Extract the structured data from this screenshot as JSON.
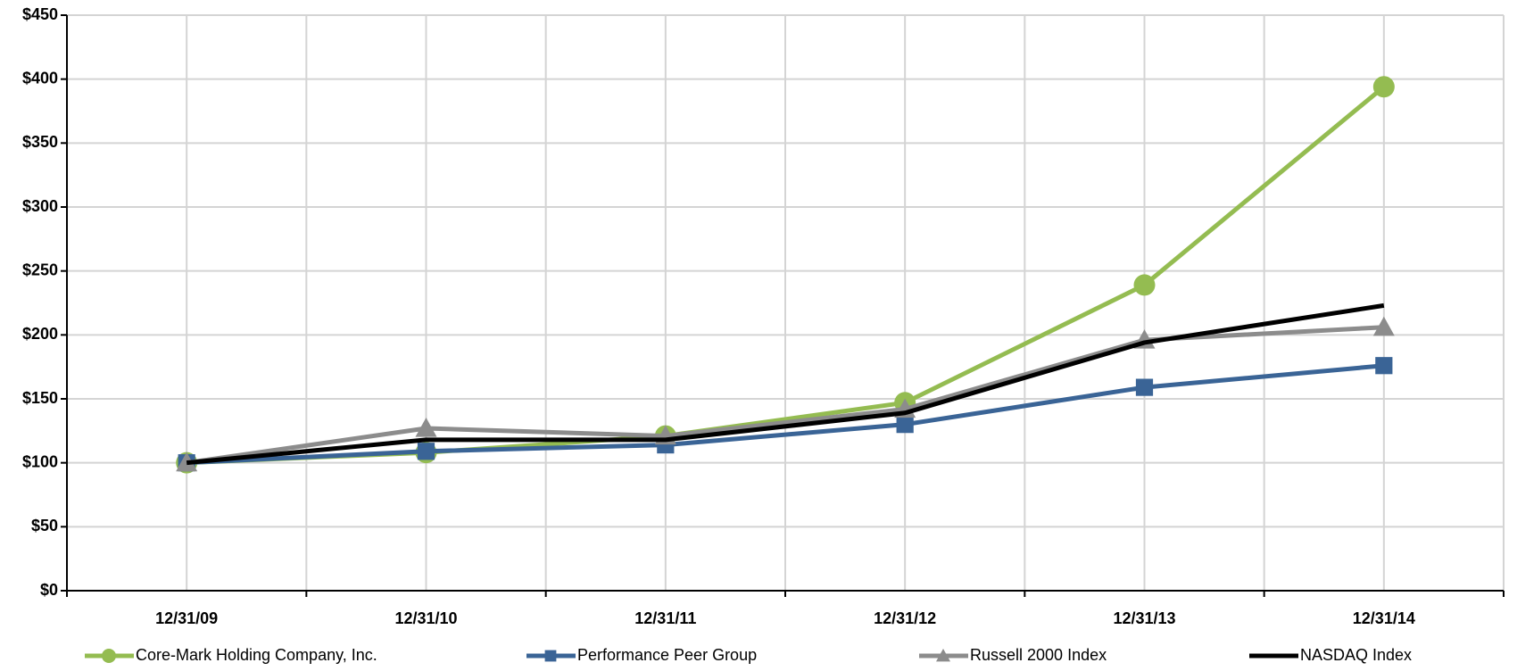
{
  "chart_data": {
    "type": "line",
    "categories": [
      "12/31/09",
      "12/31/10",
      "12/31/11",
      "12/31/12",
      "12/31/13",
      "12/31/14"
    ],
    "series": [
      {
        "name": "Core-Mark Holding Company, Inc.",
        "color": "#94bc51",
        "marker": "circle",
        "values": [
          100,
          108,
          121,
          147,
          239,
          394
        ]
      },
      {
        "name": "Performance Peer Group",
        "color": "#3a6496",
        "marker": "square",
        "values": [
          100,
          109,
          114,
          130,
          159,
          176
        ]
      },
      {
        "name": "Russell 2000 Index",
        "color": "#8c8c8c",
        "marker": "triangle",
        "values": [
          100,
          127,
          121,
          142,
          196,
          206
        ]
      },
      {
        "name": "NASDAQ Index",
        "color": "#000000",
        "marker": "none",
        "values": [
          100,
          118,
          118,
          139,
          194,
          223
        ]
      }
    ],
    "ylim": [
      0,
      450
    ],
    "yticks": [
      {
        "value": 0,
        "label": "$0"
      },
      {
        "value": 50,
        "label": "$50"
      },
      {
        "value": 100,
        "label": "$100"
      },
      {
        "value": 150,
        "label": "$150"
      },
      {
        "value": 200,
        "label": "$200"
      },
      {
        "value": 250,
        "label": "$250"
      },
      {
        "value": 300,
        "label": "$300"
      },
      {
        "value": 350,
        "label": "$350"
      },
      {
        "value": 400,
        "label": "$400"
      },
      {
        "value": 450,
        "label": "$450"
      }
    ],
    "grid": true
  }
}
